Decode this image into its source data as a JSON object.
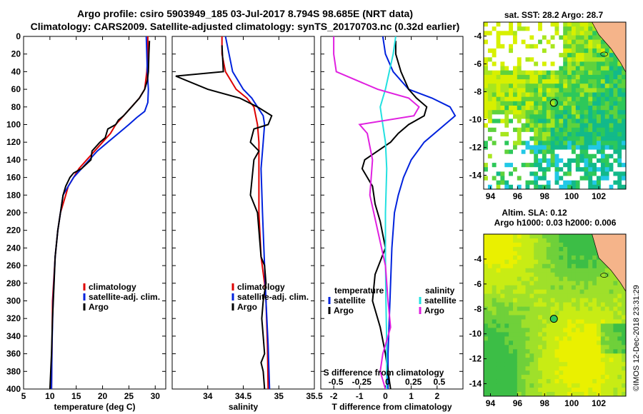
{
  "header": {
    "title_line1": "Argo profile: csiro 5903949_185 03-Jul-2017 8.794S 98.685E (NRT data)",
    "title_line2": "Climatology: CARS2009. Satellite-adjusted climatology: synTS_20170703.nc (0.32d earlier)"
  },
  "colors": {
    "climatology": "#dd0000",
    "satellite_adj": "#0022dd",
    "argo": "#000000",
    "s_satellite": "#22e0e0",
    "s_argo": "#e020e0",
    "land": "#f5b48a",
    "no_data": "#ffffff"
  },
  "chart_data": [
    {
      "type": "line",
      "id": "temperature",
      "xlabel": "temperature (deg C)",
      "ylabel": "",
      "xlim": [
        5,
        32
      ],
      "ylim": [
        400,
        0
      ],
      "xticks": [
        5,
        10,
        15,
        20,
        25,
        30
      ],
      "xtick_labels": [
        "5",
        "10",
        "15",
        "20",
        "25",
        "30"
      ],
      "yticks": [
        0,
        20,
        40,
        60,
        80,
        100,
        120,
        140,
        160,
        180,
        200,
        220,
        240,
        260,
        280,
        300,
        320,
        340,
        360,
        380,
        400
      ],
      "ytick_labels": [
        "0",
        "20",
        "40",
        "60",
        "80",
        "100",
        "120",
        "140",
        "160",
        "180",
        "200",
        "220",
        "240",
        "260",
        "280",
        "300",
        "320",
        "340",
        "360",
        "380",
        "400"
      ],
      "legend": [
        "climatology",
        "satellite-adj. clim.",
        "Argo"
      ],
      "series": [
        {
          "name": "climatology",
          "color": "#dd0000",
          "x": [
            28.6,
            28.6,
            28.4,
            28.0,
            27.0,
            25.5,
            24.0,
            22.5,
            21.5,
            20.0,
            18.5,
            17.0,
            15.5,
            14.5,
            13.5,
            13.0,
            12.0,
            11.5,
            11.0,
            10.5,
            10.4,
            10.3
          ],
          "depth": [
            0,
            20,
            40,
            60,
            70,
            80,
            90,
            100,
            110,
            120,
            130,
            140,
            150,
            160,
            170,
            180,
            200,
            220,
            250,
            300,
            350,
            400
          ]
        },
        {
          "name": "satellite-adj. clim.",
          "color": "#0022dd",
          "x": [
            28.3,
            28.4,
            28.5,
            28.7,
            28.6,
            28.0,
            26.5,
            25.0,
            23.0,
            21.0,
            19.0,
            17.5,
            16.0,
            14.5,
            13.5,
            12.5,
            12.0,
            11.5,
            11.0,
            10.6,
            10.4,
            10.3
          ],
          "depth": [
            0,
            20,
            40,
            60,
            75,
            85,
            92,
            100,
            110,
            120,
            130,
            140,
            150,
            160,
            170,
            180,
            200,
            220,
            250,
            300,
            350,
            400
          ]
        },
        {
          "name": "Argo",
          "color": "#000000",
          "x": [
            28.9,
            28.8,
            28.7,
            28.5,
            28.0,
            27.0,
            25.5,
            24.0,
            23.0,
            22.5,
            21.0,
            20.5,
            19.5,
            18.0,
            17.8,
            16.0,
            14.5,
            13.8,
            13.0,
            12.5,
            12.0,
            11.5,
            11.0,
            10.8,
            10.5,
            10.3,
            10.0
          ],
          "depth": [
            5,
            20,
            40,
            50,
            60,
            70,
            80,
            90,
            95,
            100,
            105,
            115,
            120,
            130,
            140,
            150,
            155,
            160,
            170,
            180,
            200,
            220,
            250,
            280,
            320,
            360,
            400
          ]
        }
      ]
    },
    {
      "type": "line",
      "id": "salinity",
      "xlabel": "salinity",
      "xlim": [
        33.5,
        35.5
      ],
      "ylim": [
        400,
        0
      ],
      "xticks": [
        34,
        34.5,
        35,
        35.5
      ],
      "xtick_labels": [
        "34",
        "34.5",
        "35",
        "35.5"
      ],
      "legend": [
        "climatology",
        "satellite-adj. clim.",
        "Argo"
      ],
      "series": [
        {
          "name": "climatology",
          "color": "#dd0000",
          "x": [
            34.2,
            34.2,
            34.25,
            34.4,
            34.55,
            34.65,
            34.7,
            34.72,
            34.72,
            34.72,
            34.75,
            34.8,
            34.82,
            34.84,
            34.85
          ],
          "depth": [
            0,
            20,
            40,
            60,
            70,
            80,
            100,
            120,
            150,
            200,
            250,
            280,
            300,
            350,
            400
          ]
        },
        {
          "name": "satellite-adj. clim.",
          "color": "#0022dd",
          "x": [
            34.25,
            34.3,
            34.35,
            34.5,
            34.62,
            34.7,
            34.78,
            34.8,
            34.78,
            34.75,
            34.77,
            34.8,
            34.82,
            34.85,
            34.87
          ],
          "depth": [
            0,
            20,
            40,
            60,
            70,
            80,
            90,
            100,
            120,
            150,
            200,
            260,
            300,
            350,
            400
          ]
        },
        {
          "name": "Argo",
          "color": "#000000",
          "x": [
            34.2,
            34.22,
            33.55,
            34.0,
            34.45,
            34.7,
            34.9,
            34.85,
            34.65,
            34.6,
            34.72,
            34.65,
            34.6,
            34.7,
            34.72,
            34.75,
            34.8,
            34.82,
            34.78,
            34.76,
            34.78,
            34.8,
            34.75,
            34.78,
            34.8
          ],
          "depth": [
            10,
            40,
            45,
            60,
            70,
            80,
            90,
            100,
            105,
            120,
            130,
            140,
            180,
            200,
            220,
            250,
            260,
            280,
            300,
            320,
            340,
            360,
            370,
            380,
            400
          ]
        }
      ]
    },
    {
      "type": "line",
      "id": "difference",
      "xlabel": "T difference from climatology",
      "xlabel_top": "S difference from climatology",
      "xlim": [
        -2.5,
        3.0
      ],
      "ylim": [
        400,
        0
      ],
      "xticks": [
        -2,
        -1,
        0,
        1,
        2
      ],
      "xtick_labels": [
        "-2",
        "-1",
        "0",
        "1",
        "2"
      ],
      "top_xtick_labels": [
        "-0.5",
        "-0.25",
        "0",
        "0.25",
        "0.5"
      ],
      "top_xtick_positions": [
        -2,
        -1,
        0,
        1,
        2
      ],
      "legend_left_title": "temperature",
      "legend_right_title": "salinity",
      "legend": [
        "satellite",
        "Argo",
        "satellite",
        "Argo"
      ],
      "series": [
        {
          "name": "T satellite",
          "color": "#0022dd",
          "x": [
            -0.1,
            0.0,
            0.3,
            0.9,
            1.8,
            2.5,
            2.7,
            2.3,
            1.5,
            1.0,
            0.7,
            0.5,
            0.35,
            0.25,
            0.2,
            0.15,
            0.1,
            0.1
          ],
          "depth": [
            0,
            20,
            40,
            60,
            70,
            80,
            90,
            100,
            120,
            140,
            160,
            180,
            200,
            240,
            280,
            320,
            360,
            400
          ]
        },
        {
          "name": "T Argo",
          "color": "#000000",
          "x": [
            0.4,
            0.4,
            0.6,
            0.9,
            1.2,
            1.6,
            1.5,
            0.9,
            0.5,
            0.2,
            -0.3,
            -0.8,
            -0.9,
            -0.5,
            -0.4,
            -0.2,
            0.0,
            -0.4,
            -0.5,
            -0.2,
            0.0,
            0.2
          ],
          "depth": [
            5,
            20,
            40,
            60,
            70,
            80,
            90,
            100,
            110,
            120,
            130,
            140,
            150,
            170,
            190,
            210,
            240,
            270,
            300,
            330,
            360,
            400
          ]
        },
        {
          "name": "S satellite",
          "color": "#22e0e0",
          "x": [
            0.4,
            0.3,
            0.15,
            0.0,
            -0.1,
            -0.2,
            -0.1,
            0.0,
            0.05,
            0.0,
            0.0,
            0.02,
            0.05,
            0.05,
            0.05
          ],
          "depth": [
            0,
            20,
            40,
            60,
            70,
            80,
            100,
            120,
            150,
            200,
            250,
            300,
            350,
            380,
            400
          ]
        },
        {
          "name": "S Argo",
          "color": "#e020e0",
          "x": [
            -2.0,
            -2.0,
            -1.9,
            -0.3,
            0.9,
            1.3,
            1.1,
            -1.0,
            -0.7,
            -0.5,
            -0.6,
            -0.3,
            0.0,
            0.1,
            0.2,
            0.0,
            -0.1,
            -0.2,
            0.0
          ],
          "depth": [
            0,
            20,
            40,
            60,
            70,
            80,
            90,
            100,
            110,
            140,
            180,
            220,
            260,
            300,
            330,
            350,
            360,
            380,
            400
          ]
        }
      ]
    },
    {
      "type": "heatmap",
      "id": "sst_map",
      "title": "sat. SST: 28.2  Argo: 28.7",
      "xlim": [
        93.5,
        104
      ],
      "ylim": [
        -15,
        -3
      ],
      "xticks": [
        94,
        96,
        98,
        100,
        102
      ],
      "xtick_labels": [
        "94",
        "96",
        "98",
        "100",
        "102"
      ],
      "yticks": [
        -4,
        -6,
        -8,
        -10,
        -12,
        -14
      ],
      "ytick_labels": [
        "-4",
        "-6",
        "-8",
        "-10",
        "-12",
        "-14"
      ],
      "argo_position": {
        "lon": 98.685,
        "lat": -8.794
      },
      "sst_sat": 28.2,
      "sst_argo": 28.7
    },
    {
      "type": "heatmap",
      "id": "sla_map",
      "title_line1": "Altim. SLA: 0.12",
      "title_line2": "Argo h1000: 0.03 h2000: 0.006",
      "xlim": [
        93.5,
        104
      ],
      "ylim": [
        -15,
        -2
      ],
      "xticks": [
        94,
        96,
        98,
        100,
        102
      ],
      "xtick_labels": [
        "94",
        "96",
        "98",
        "100",
        "102"
      ],
      "yticks": [
        -4,
        -6,
        -8,
        -10,
        -12,
        -14
      ],
      "ytick_labels": [
        "-4",
        "-6",
        "-8",
        "-10",
        "-12",
        "-14"
      ],
      "argo_position": {
        "lon": 98.685,
        "lat": -8.794
      },
      "sla": 0.12,
      "h1000": 0.03,
      "h2000": 0.006
    }
  ],
  "footer": {
    "imos_stamp": "©IMOS 12-Dec-2018 23:31:29"
  }
}
